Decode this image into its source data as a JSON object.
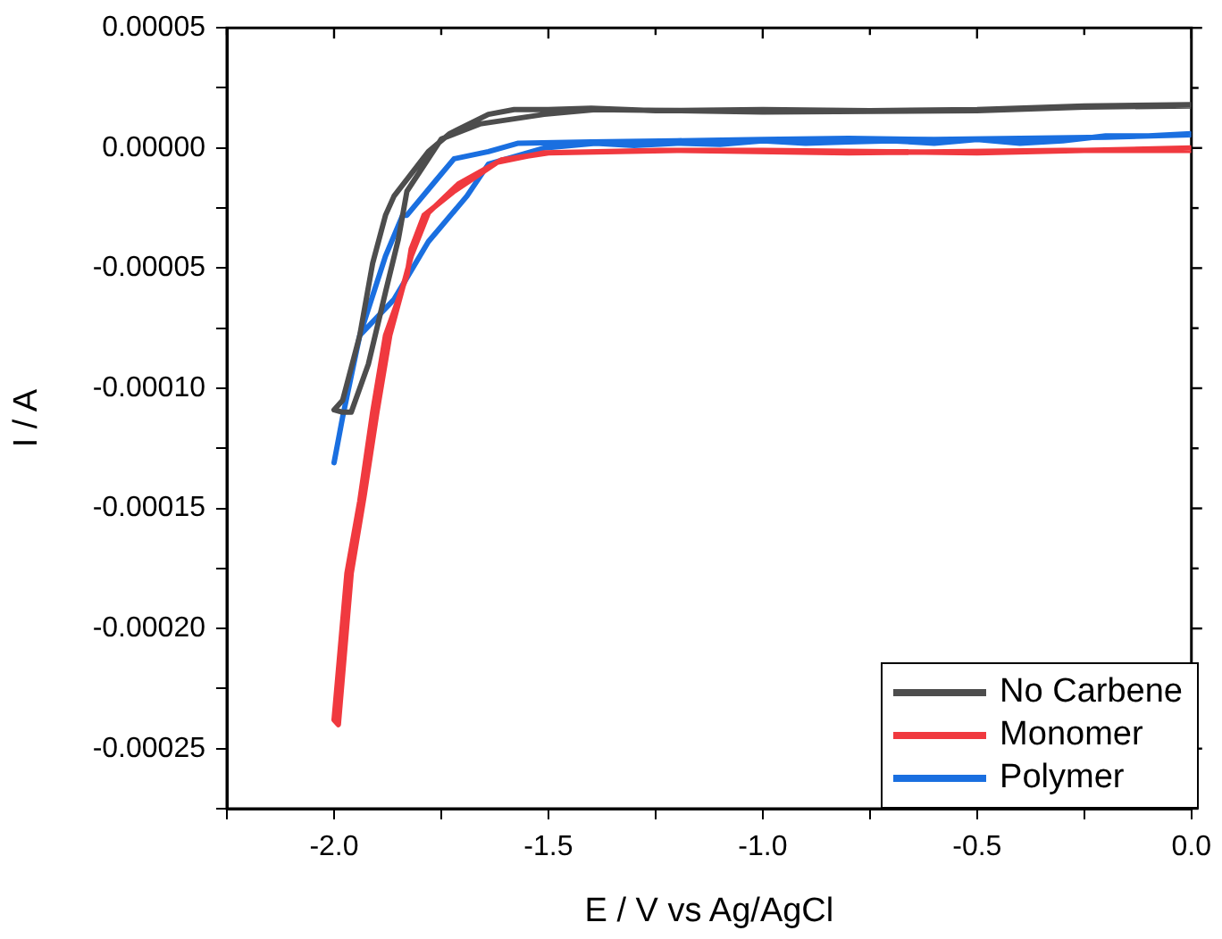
{
  "chart_data": {
    "type": "line",
    "xlabel": "E / V vs Ag/AgCl",
    "ylabel": "I / A",
    "xlim": [
      -2.25,
      0
    ],
    "xticks": [
      {
        "value": -2.25,
        "label": null
      },
      {
        "value": -2,
        "label": "-2.0"
      },
      {
        "value": -1.75,
        "label": null
      },
      {
        "value": -1.5,
        "label": "-1.5"
      },
      {
        "value": -1.25,
        "label": null
      },
      {
        "value": -1,
        "label": "-1.0"
      },
      {
        "value": -0.75,
        "label": null
      },
      {
        "value": -0.5,
        "label": "-0.5"
      },
      {
        "value": -0.25,
        "label": null
      },
      {
        "value": 0,
        "label": "0.0"
      }
    ],
    "ylim": [
      -0.000275,
      5e-05
    ],
    "yticks": [
      {
        "value": -0.000275,
        "label": null
      },
      {
        "value": -0.00025,
        "label": "-0.00025"
      },
      {
        "value": -0.000225,
        "label": null
      },
      {
        "value": -0.0002,
        "label": "-0.00020"
      },
      {
        "value": -0.000175,
        "label": null
      },
      {
        "value": -0.00015,
        "label": "-0.00015"
      },
      {
        "value": -0.000125,
        "label": null
      },
      {
        "value": -0.0001,
        "label": "-0.00010"
      },
      {
        "value": -7.5e-05,
        "label": null
      },
      {
        "value": -5e-05,
        "label": "-0.00005"
      },
      {
        "value": -2.5e-05,
        "label": null
      },
      {
        "value": 0,
        "label": "0.00000"
      },
      {
        "value": 2.5e-05,
        "label": null
      },
      {
        "value": 5e-05,
        "label": "0.00005"
      }
    ],
    "grid": false,
    "legend": "bottom right",
    "marker": "none",
    "line_style": "solid",
    "series": [
      {
        "name": "No Carbene",
        "color": "#4d4d4d",
        "x": [
          0,
          -0.25,
          -0.5,
          -0.75,
          -1,
          -1.25,
          -1.4,
          -1.5,
          -1.58,
          -1.64,
          -1.73,
          -1.78,
          -1.86,
          -1.88,
          -1.91,
          -1.94,
          -1.98,
          -2,
          -1.98,
          -1.96,
          -1.92,
          -1.88,
          -1.85,
          -1.83,
          -1.75,
          -1.66,
          -1.51,
          -1.39,
          -1,
          -0.5,
          -0.25,
          0
        ],
        "values": [
          1.8e-05,
          1.75e-05,
          1.6e-05,
          1.55e-05,
          1.6e-05,
          1.55e-05,
          1.65e-05,
          1.6e-05,
          1.6e-05,
          1.4e-05,
          6e-06,
          -1.5e-06,
          -2e-05,
          -2.8e-05,
          -4.8e-05,
          -7.8e-05,
          -0.000105,
          -0.000109,
          -0.00011,
          -0.00011,
          -9e-05,
          -6e-05,
          -3.8e-05,
          -1.8e-05,
          3.7e-06,
          1e-05,
          1.4e-05,
          1.6e-05,
          1.5e-05,
          1.55e-05,
          1.7e-05,
          1.75e-05
        ]
      },
      {
        "name": "Monomer",
        "color": "#f0393f",
        "x": [
          0,
          -0.25,
          -0.5,
          -1,
          -1.24,
          -1.51,
          -1.62,
          -1.72,
          -1.79,
          -1.82,
          -1.83,
          -1.88,
          -1.91,
          -1.94,
          -1.97,
          -2,
          -1.99,
          -1.96,
          -1.93,
          -1.9,
          -1.87,
          -1.82,
          -1.78,
          -1.71,
          -1.61,
          -1.5,
          -1.2,
          -0.8,
          -0.3,
          0
        ],
        "values": [
          0,
          -1e-06,
          -2e-06,
          -1e-06,
          -1e-06,
          -2e-06,
          -6e-06,
          -1.8e-05,
          -2.8e-05,
          -4.2e-05,
          -5.3e-05,
          -7.8e-05,
          -0.00011,
          -0.000147,
          -0.000177,
          -0.000238,
          -0.00024,
          -0.000177,
          -0.000145,
          -0.00011,
          -7.8e-05,
          -4.5e-05,
          -2.7e-05,
          -1.5e-05,
          -5e-06,
          -2e-06,
          -1e-06,
          -2e-06,
          -1e-06,
          -1e-06
        ]
      },
      {
        "name": "Polymer",
        "color": "#1a6fe0",
        "x": [
          0,
          -0.1,
          -0.2,
          -0.3,
          -0.4,
          -0.5,
          -0.6,
          -0.7,
          -0.8,
          -0.9,
          -1,
          -1.1,
          -1.2,
          -1.3,
          -1.39,
          -1.51,
          -1.64,
          -1.69,
          -1.78,
          -1.86,
          -1.94,
          -1.98,
          -2,
          -1.98,
          -1.94,
          -1.88,
          -1.84,
          -1.83,
          -1.76,
          -1.72,
          -1.64,
          -1.57,
          -1.4,
          -1.2,
          -1,
          -0.8,
          -0.6,
          -0.4,
          -0.2,
          0
        ],
        "values": [
          6e-06,
          5e-06,
          5e-06,
          3e-06,
          2e-06,
          3.5e-06,
          2e-06,
          3e-06,
          2.5e-06,
          2e-06,
          3e-06,
          1.5e-06,
          2e-06,
          1e-06,
          2e-06,
          0,
          -6.7e-06,
          -2e-05,
          -3.9e-05,
          -6.3e-05,
          -7.8e-05,
          -0.000112,
          -0.000131,
          -0.000112,
          -7.8e-05,
          -4.5e-05,
          -2.8e-05,
          -2.8e-05,
          -1.3e-05,
          -4.5e-06,
          -1.5e-06,
          2e-06,
          2.5e-06,
          3e-06,
          3.5e-06,
          4e-06,
          3.5e-06,
          4e-06,
          4.5e-06,
          5.5e-06
        ]
      }
    ]
  }
}
